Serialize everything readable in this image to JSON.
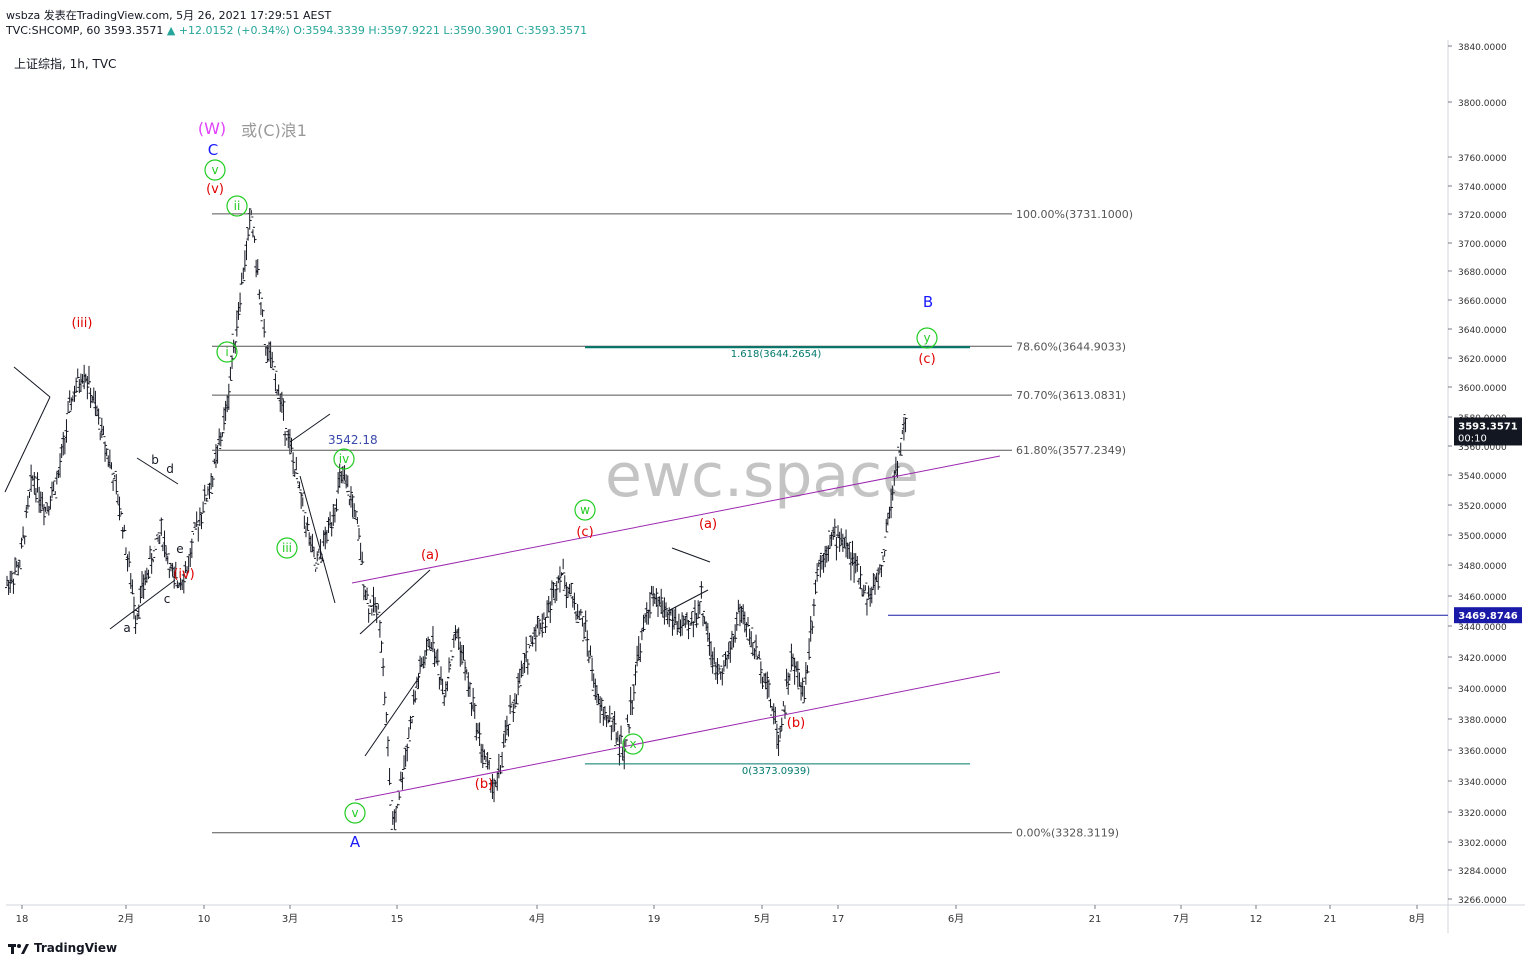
{
  "header": {
    "line1": "wsbza 发表在TradingView.com, 5月 26, 2021 17:29:51 AEST",
    "symbol": "TVC:SHCOMP, 60",
    "last": "3593.3571",
    "arrow": "▲",
    "change": "+12.0152 (+0.34%)",
    "ohlc": "O:3594.3339 H:3597.9221 L:3590.3901 C:3593.3571",
    "legend": "上证综指, 1h, TVC"
  },
  "footer": {
    "brand": "TradingView"
  },
  "watermark": "ewc.space",
  "colors": {
    "candle": "#131722",
    "fib": "#555555",
    "channel": "#9c27b0",
    "green": "#22cc22",
    "red": "#e00000",
    "blue": "#1a1aff",
    "teal": "#00796b",
    "hline": "#1a1aa8",
    "magenta": "#e040fb"
  },
  "chart_data": {
    "type": "candlestick",
    "symbol": "TVC:SHCOMP",
    "interval": "1h",
    "ylim": [
      3255,
      3848
    ],
    "y_ticks": [
      "3840.0000",
      "3800.0000",
      "3760.0000",
      "3740.0000",
      "3720.0000",
      "3700.0000",
      "3680.0000",
      "3660.0000",
      "3640.0000",
      "3620.0000",
      "3600.0000",
      "3580.0000",
      "3560.0000",
      "3540.0000",
      "3520.0000",
      "3500.0000",
      "3480.0000",
      "3460.0000",
      "3440.0000",
      "3420.0000",
      "3400.0000",
      "3380.0000",
      "3360.0000",
      "3340.0000",
      "3320.0000",
      "3302.0000",
      "3284.0000",
      "3266.0000"
    ],
    "x_ticks": [
      "18",
      "2月",
      "10",
      "3月",
      "15",
      "4月",
      "19",
      "5月",
      "17",
      "6月",
      "21",
      "7月",
      "12",
      "21",
      "8月"
    ],
    "last_price": "3593.3571",
    "countdown": "00:10",
    "price_line": "3469.8746",
    "fib_levels": [
      {
        "label": "100.00%(3731.1000)",
        "value": 3731.1
      },
      {
        "label": "78.60%(3644.9033)",
        "value": 3644.9033
      },
      {
        "label": "70.70%(3613.0831)",
        "value": 3613.0831
      },
      {
        "label": "61.80%(3577.2349)",
        "value": 3577.2349
      },
      {
        "label": "0.00%(3328.3119)",
        "value": 3328.3119
      }
    ],
    "ext_levels": [
      {
        "label": "1.618(3644.2654)",
        "value": 3644.2654
      },
      {
        "label": "0(3373.0939)",
        "value": 3373.0939
      }
    ],
    "price_annotation": "3542.18",
    "wave_labels_red": [
      "(iii)",
      "(iv)",
      "(v)",
      "(a)",
      "(b)",
      "(c)",
      "(a)",
      "(b)",
      "(c)"
    ],
    "wave_labels_green": [
      "v",
      "ii",
      "i",
      "iii",
      "iv",
      "v",
      "w",
      "x",
      "y"
    ],
    "wave_labels_blue": [
      "C",
      "A",
      "B"
    ],
    "wave_labels_black": [
      "a",
      "b",
      "c",
      "d",
      "e"
    ],
    "title_mark": "(W)",
    "title_note": "或(C)浪1",
    "series": [
      {
        "name": "",
        "anchors": [
          [
            3490,
            3545
          ],
          [
            3504,
            3545
          ],
          [
            3560,
            3560
          ],
          [
            3540,
            3533
          ],
          [
            3560,
            3535
          ],
          [
            3610,
            3585
          ],
          [
            3630,
            3625
          ],
          [
            3600,
            3577
          ],
          [
            3570,
            3560
          ],
          [
            3530,
            3500
          ],
          [
            3470,
            3448
          ],
          [
            3500,
            3484
          ],
          [
            3525,
            3530
          ],
          [
            3490,
            3472
          ],
          [
            3500,
            3488
          ],
          [
            3535,
            3530
          ],
          [
            3560,
            3548
          ],
          [
            3600,
            3610
          ],
          [
            3670,
            3690
          ],
          [
            3731,
            3700
          ],
          [
            3650,
            3700
          ],
          [
            3620,
            3610
          ],
          [
            3580,
            3575
          ],
          [
            3540,
            3550
          ],
          [
            3500,
            3510
          ],
          [
            3525,
            3540
          ],
          [
            3560,
            3555
          ],
          [
            3540,
            3520
          ],
          [
            3480,
            3490
          ],
          [
            3470,
            3480
          ],
          [
            3330,
            3365
          ],
          [
            3380,
            3400
          ],
          [
            3430,
            3450
          ],
          [
            3455,
            3440
          ],
          [
            3420,
            3430
          ],
          [
            3460,
            3470
          ],
          [
            3420,
            3400
          ],
          [
            3380,
            3355
          ],
          [
            3355,
            3380
          ],
          [
            3400,
            3420
          ],
          [
            3430,
            3450
          ],
          [
            3460,
            3440
          ],
          [
            3470,
            3490
          ],
          [
            3500,
            3487
          ],
          [
            3480,
            3470
          ],
          [
            3460,
            3430
          ],
          [
            3410,
            3400
          ],
          [
            3400,
            3380
          ],
          [
            3380,
            3400
          ],
          [
            3440,
            3455
          ],
          [
            3480,
            3490
          ],
          [
            3475,
            3480
          ],
          [
            3465,
            3470
          ],
          [
            3460,
            3480
          ],
          [
            3480,
            3490
          ],
          [
            3435,
            3420
          ],
          [
            3440,
            3460
          ],
          [
            3475,
            3470
          ],
          [
            3450,
            3440
          ],
          [
            3430,
            3400
          ],
          [
            3390,
            3420
          ],
          [
            3440,
            3425
          ],
          [
            3420,
            3460
          ],
          [
            3500,
            3520
          ],
          [
            3520,
            3510
          ],
          [
            3520,
            3505
          ],
          [
            3500,
            3490
          ],
          [
            3480,
            3495
          ],
          [
            3500,
            3540
          ],
          [
            3560,
            3590
          ],
          [
            3600,
            3593
          ]
        ]
      }
    ]
  }
}
